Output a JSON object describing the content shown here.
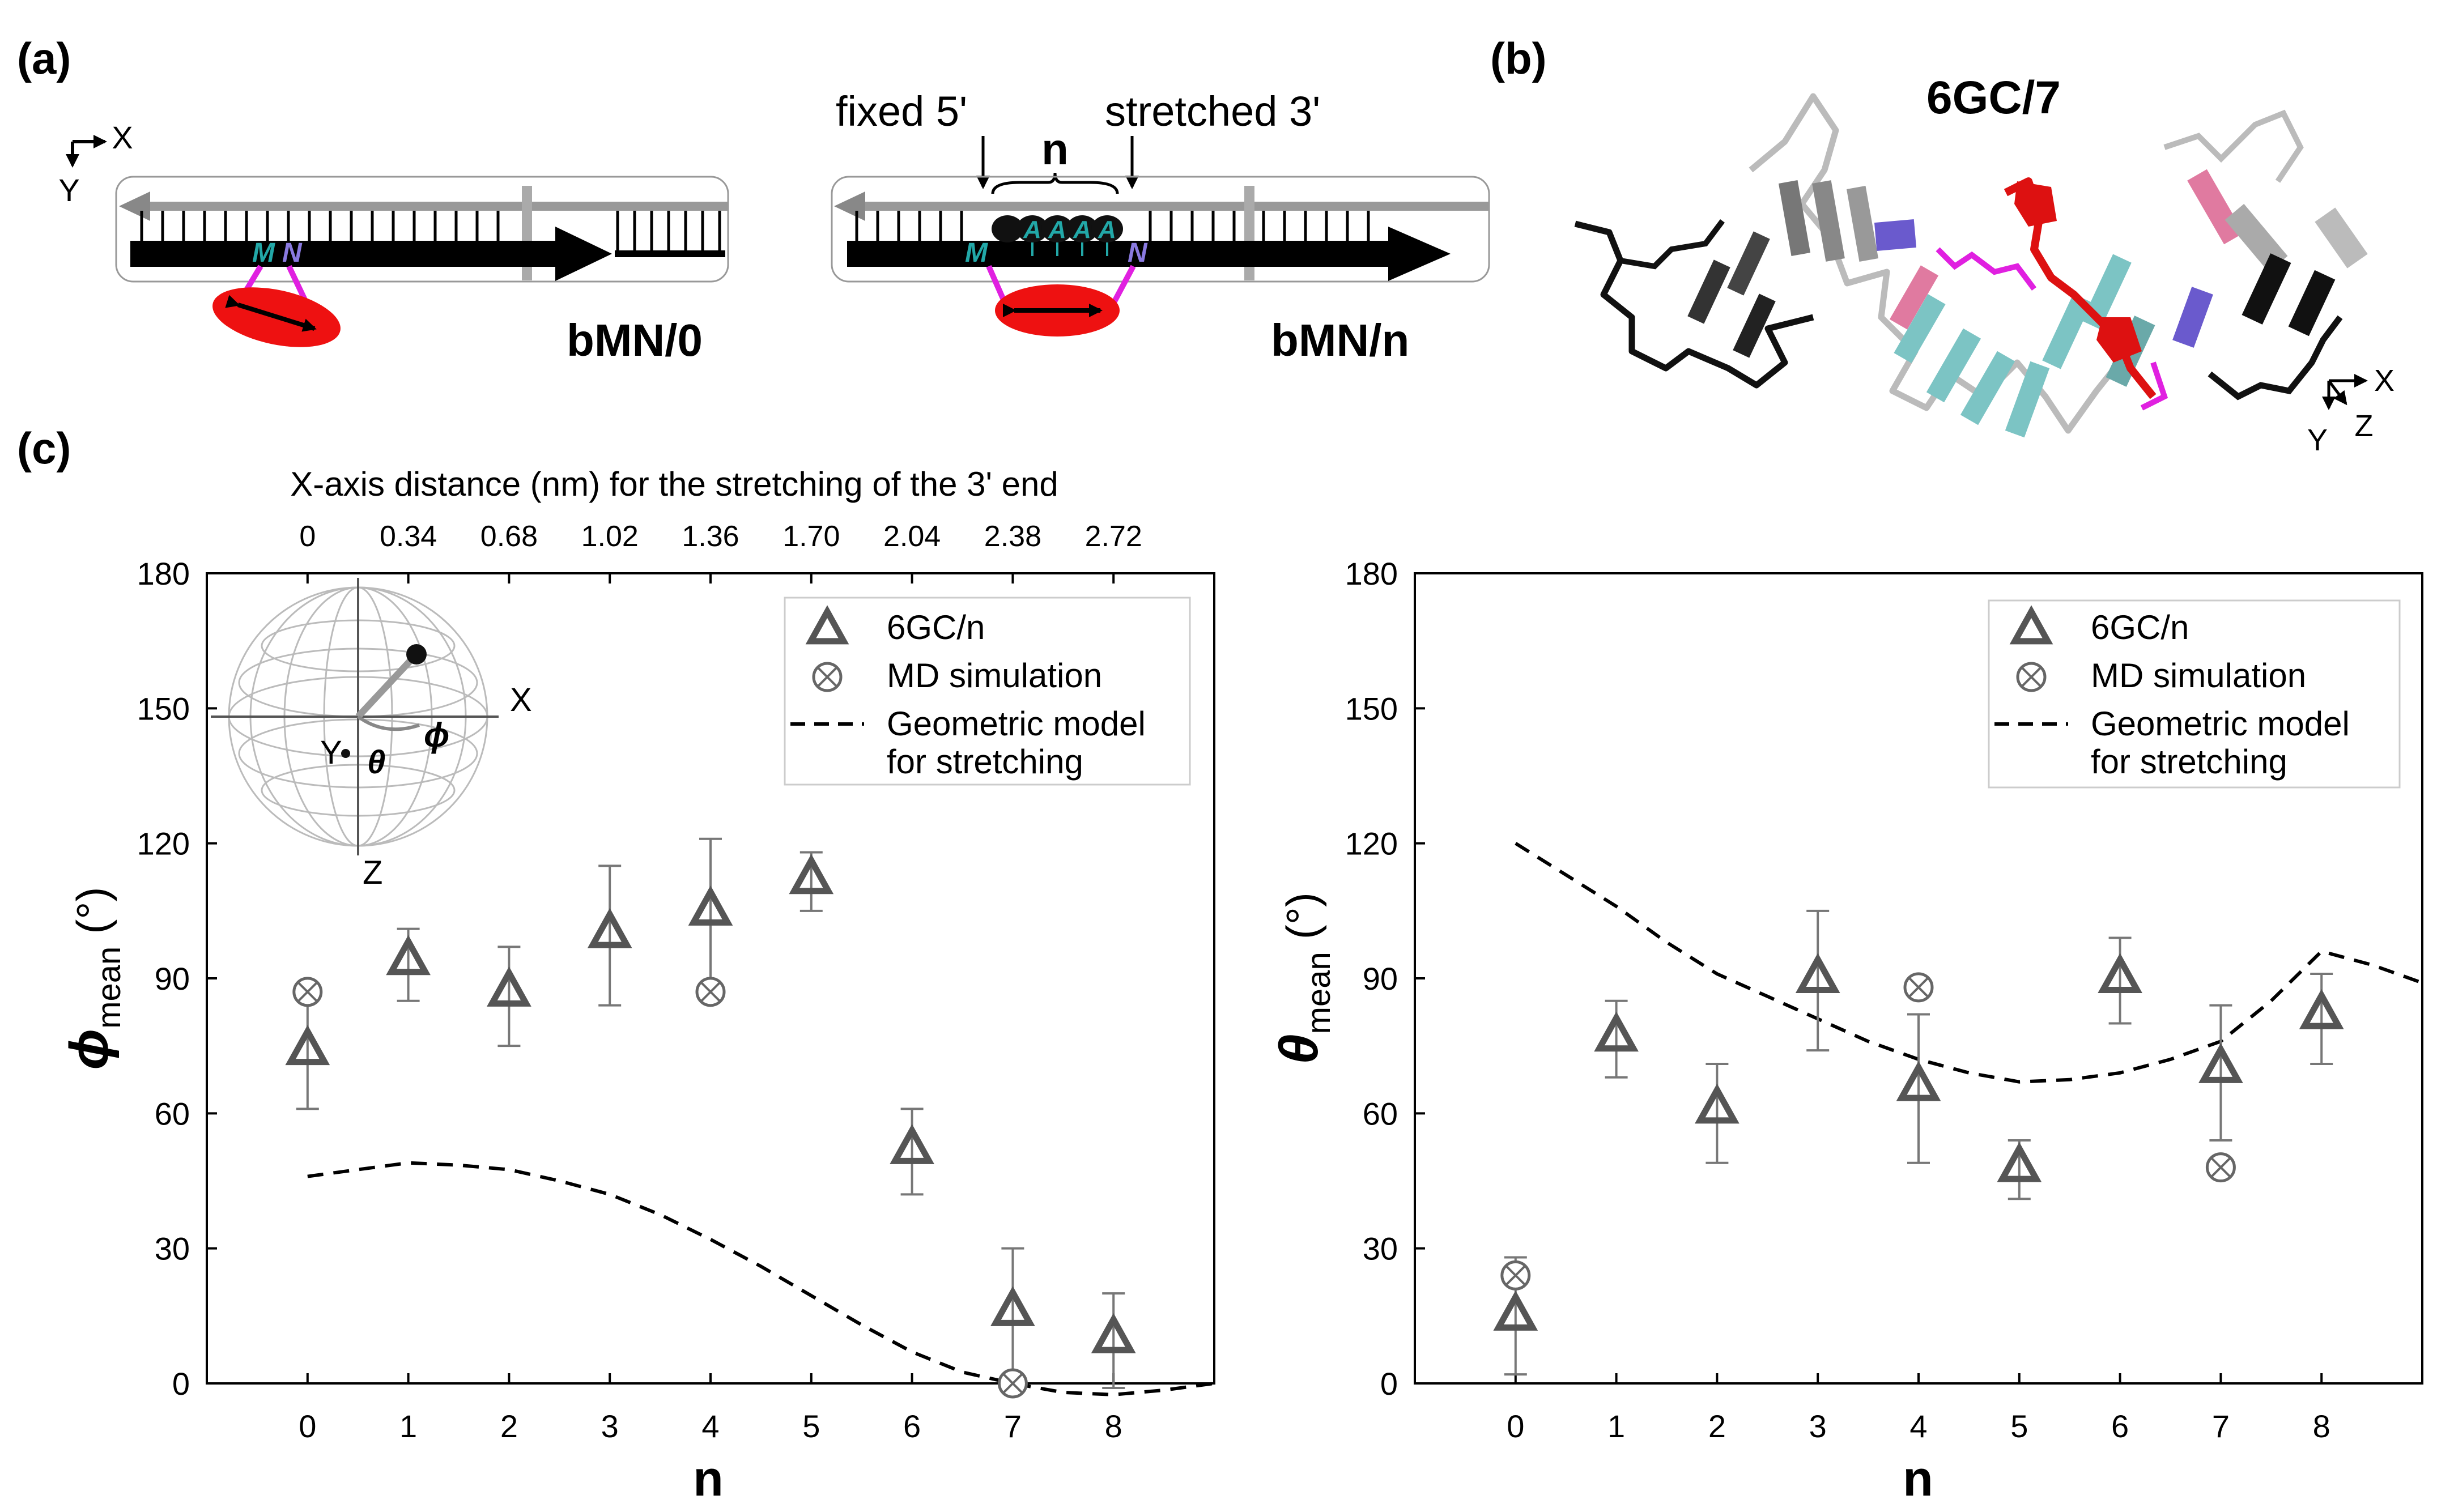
{
  "panels": {
    "a": {
      "label": "(a)",
      "axis_x": "X",
      "axis_y": "Y",
      "fixed_label": "fixed 5'",
      "stretched_label": "stretched 3'",
      "n_label": "n",
      "left_caption": "bMN/0",
      "right_caption": "bMN/n",
      "M": "M",
      "N": "N",
      "A": "A"
    },
    "b": {
      "label": "(b)",
      "title": "6GC/7",
      "axis_x": "X",
      "axis_y": "Y",
      "axis_z": "Z"
    },
    "c": {
      "label": "(c)",
      "top_axis_title": "X-axis distance (nm) for the stretching of the 3' end",
      "sphere_labels": {
        "x": "X",
        "y": "Y",
        "z": "Z",
        "phi": "ϕ",
        "theta": "θ"
      }
    }
  },
  "colors": {
    "triangle": "#555555",
    "md": "#666666",
    "errorbar": "#777777",
    "model": "#000000",
    "ellipse": "#ee1111",
    "teal": "#22a8a8",
    "magenta": "#e020e0",
    "red": "#dd1111",
    "purple": "#6a5acd",
    "pink": "#e07aa0",
    "lightteal": "#7cc4c4"
  },
  "chart_data": [
    {
      "type": "scatter",
      "id": "phi",
      "ylabel_symbol": "ϕ",
      "ylabel_sub": "mean",
      "ylabel_unit": "(°)",
      "xlabel": "n",
      "xlim": [
        -1,
        9
      ],
      "ylim": [
        0,
        180
      ],
      "xticks": [
        0,
        1,
        2,
        3,
        4,
        5,
        6,
        7,
        8
      ],
      "yticks": [
        0,
        30,
        60,
        90,
        120,
        150,
        180
      ],
      "top_ticks": [
        "0",
        "0.34",
        "0.68",
        "1.02",
        "1.36",
        "1.70",
        "2.04",
        "2.38",
        "2.72"
      ],
      "legend": [
        "6GC/n",
        "MD simulation",
        "Geometric model",
        "for stretching"
      ],
      "series": [
        {
          "name": "6GC/n",
          "x": [
            0,
            1,
            2,
            3,
            4,
            5,
            6,
            7,
            8
          ],
          "y": [
            74,
            94,
            87,
            100,
            105,
            112,
            52,
            16,
            10
          ],
          "err_low": [
            13,
            9,
            12,
            16,
            18,
            7,
            10,
            16,
            11
          ],
          "err_high": [
            13,
            7,
            10,
            15,
            16,
            6,
            9,
            14,
            10
          ]
        },
        {
          "name": "MD simulation",
          "x": [
            0,
            4,
            7
          ],
          "y": [
            87,
            87,
            0
          ]
        },
        {
          "name": "Geometric model for stretching",
          "x": [
            0,
            0.5,
            1,
            1.5,
            2,
            2.5,
            3,
            3.5,
            4,
            4.5,
            5,
            5.5,
            6,
            6.5,
            7,
            7.5,
            8,
            8.5,
            9
          ],
          "y": [
            46,
            47.5,
            49,
            48.5,
            47.5,
            45,
            42,
            37.5,
            32,
            26,
            19.5,
            13,
            7,
            2.5,
            0,
            -2,
            -2.5,
            -1.5,
            0
          ]
        }
      ]
    },
    {
      "type": "scatter",
      "id": "theta",
      "ylabel_symbol": "θ",
      "ylabel_sub": "mean",
      "ylabel_unit": "(°)",
      "xlabel": "n",
      "xlim": [
        -1,
        9
      ],
      "ylim": [
        0,
        180
      ],
      "xticks": [
        0,
        1,
        2,
        3,
        4,
        5,
        6,
        7,
        8
      ],
      "yticks": [
        0,
        30,
        60,
        90,
        120,
        150,
        180
      ],
      "legend": [
        "6GC/n",
        "MD simulation",
        "Geometric model",
        "for stretching"
      ],
      "series": [
        {
          "name": "6GC/n",
          "x": [
            0,
            1,
            2,
            3,
            4,
            5,
            6,
            7,
            8
          ],
          "y": [
            15,
            77,
            61,
            90,
            66,
            48,
            90,
            70,
            82
          ],
          "err_low": [
            13,
            9,
            12,
            16,
            17,
            7,
            10,
            16,
            11
          ],
          "err_high": [
            13,
            8,
            10,
            15,
            16,
            6,
            9,
            14,
            9
          ]
        },
        {
          "name": "MD simulation",
          "x": [
            0,
            4,
            7
          ],
          "y": [
            24,
            88,
            48
          ]
        },
        {
          "name": "Geometric model for stretching",
          "x": [
            0,
            0.5,
            1,
            1.5,
            2,
            2.5,
            3,
            3.5,
            4,
            4.5,
            5,
            5.5,
            6,
            6.5,
            7,
            7.5,
            8,
            8.5,
            9
          ],
          "y": [
            120,
            113,
            106,
            98,
            91,
            86,
            81,
            76,
            72,
            69,
            67,
            67.5,
            69,
            72,
            76,
            85,
            96,
            93,
            89
          ]
        }
      ]
    }
  ]
}
